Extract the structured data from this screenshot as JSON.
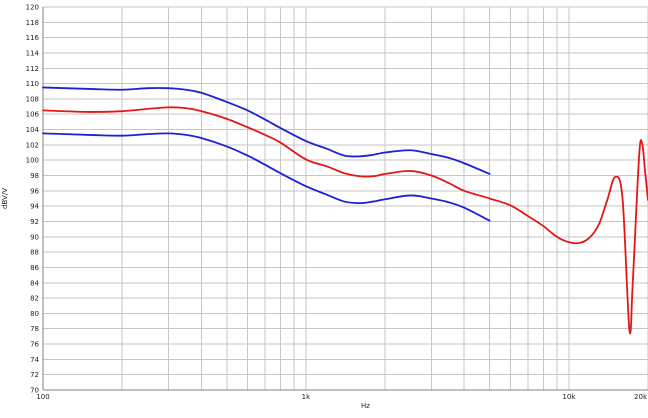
{
  "chart_data": {
    "type": "line",
    "title": "",
    "xlabel": "Hz",
    "ylabel": "dBV/V",
    "x_scale": "log",
    "xlim": [
      100,
      20000
    ],
    "ylim": [
      70,
      120
    ],
    "y_ticks": [
      70,
      72,
      74,
      76,
      78,
      80,
      82,
      84,
      86,
      88,
      90,
      92,
      94,
      96,
      98,
      100,
      102,
      104,
      106,
      108,
      110,
      112,
      114,
      116,
      118,
      120
    ],
    "x_tick_labels": [
      {
        "value": 100,
        "label": "100"
      },
      {
        "value": 1000,
        "label": "1k"
      },
      {
        "value": 10000,
        "label": "10k"
      },
      {
        "value": 20000,
        "label": "20k"
      }
    ],
    "grid": true,
    "legend": "none",
    "series": [
      {
        "color": "#1f1fd6",
        "points": [
          [
            100,
            109.5
          ],
          [
            150,
            109.3
          ],
          [
            200,
            109.2
          ],
          [
            250,
            109.4
          ],
          [
            300,
            109.4
          ],
          [
            350,
            109.2
          ],
          [
            400,
            108.8
          ],
          [
            500,
            107.6
          ],
          [
            600,
            106.5
          ],
          [
            700,
            105.3
          ],
          [
            800,
            104.2
          ],
          [
            1000,
            102.5
          ],
          [
            1200,
            101.5
          ],
          [
            1400,
            100.6
          ],
          [
            1600,
            100.5
          ],
          [
            1800,
            100.7
          ],
          [
            2000,
            101.0
          ],
          [
            2500,
            101.3
          ],
          [
            3000,
            100.8
          ],
          [
            3500,
            100.3
          ],
          [
            4000,
            99.6
          ],
          [
            5000,
            98.2
          ]
        ]
      },
      {
        "color": "#e21818",
        "points": [
          [
            100,
            106.5
          ],
          [
            150,
            106.3
          ],
          [
            200,
            106.4
          ],
          [
            250,
            106.7
          ],
          [
            300,
            106.9
          ],
          [
            350,
            106.8
          ],
          [
            400,
            106.4
          ],
          [
            500,
            105.4
          ],
          [
            600,
            104.3
          ],
          [
            700,
            103.3
          ],
          [
            800,
            102.3
          ],
          [
            1000,
            100.1
          ],
          [
            1200,
            99.2
          ],
          [
            1400,
            98.3
          ],
          [
            1600,
            97.9
          ],
          [
            1800,
            97.9
          ],
          [
            2000,
            98.2
          ],
          [
            2500,
            98.6
          ],
          [
            3000,
            98.0
          ],
          [
            3500,
            97.0
          ],
          [
            4000,
            96.0
          ],
          [
            5000,
            95.0
          ],
          [
            6000,
            94.1
          ],
          [
            7000,
            92.7
          ],
          [
            8000,
            91.4
          ],
          [
            9000,
            90.0
          ],
          [
            10000,
            89.3
          ],
          [
            11000,
            89.2
          ],
          [
            12000,
            89.9
          ],
          [
            13000,
            91.6
          ],
          [
            14000,
            94.8
          ],
          [
            15000,
            97.8
          ],
          [
            16000,
            95.0
          ],
          [
            17000,
            77.8
          ],
          [
            17500,
            84.0
          ],
          [
            18500,
            100.5
          ],
          [
            19000,
            102.2
          ],
          [
            19500,
            98.5
          ],
          [
            20000,
            94.8
          ]
        ]
      },
      {
        "color": "#1f1fd6",
        "points": [
          [
            100,
            103.5
          ],
          [
            150,
            103.3
          ],
          [
            200,
            103.2
          ],
          [
            250,
            103.4
          ],
          [
            300,
            103.5
          ],
          [
            350,
            103.3
          ],
          [
            400,
            102.9
          ],
          [
            500,
            101.8
          ],
          [
            600,
            100.6
          ],
          [
            700,
            99.4
          ],
          [
            800,
            98.3
          ],
          [
            1000,
            96.6
          ],
          [
            1200,
            95.5
          ],
          [
            1400,
            94.6
          ],
          [
            1600,
            94.4
          ],
          [
            1800,
            94.6
          ],
          [
            2000,
            94.9
          ],
          [
            2500,
            95.4
          ],
          [
            3000,
            95.0
          ],
          [
            3500,
            94.5
          ],
          [
            4000,
            93.8
          ],
          [
            5000,
            92.1
          ]
        ]
      }
    ]
  }
}
